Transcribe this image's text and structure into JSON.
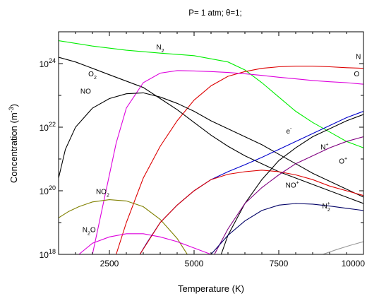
{
  "chart_data": {
    "type": "line",
    "title": "P= 1 atm; θ=1;",
    "xlabel": "Temperature (K)",
    "ylabel": "Concentration (m^-3)",
    "xlim": [
      1000,
      10000
    ],
    "ylim_log10": [
      18,
      25
    ],
    "y_scale": "log",
    "x_ticks": [
      2500,
      5000,
      7500,
      10000
    ],
    "y_ticks": [
      {
        "base": "10",
        "exp": "18"
      },
      {
        "base": "10",
        "exp": "20"
      },
      {
        "base": "10",
        "exp": "22"
      },
      {
        "base": "10",
        "exp": "24"
      }
    ],
    "grid": false,
    "series": [
      {
        "name": "N2",
        "label_main": "N",
        "label_sub": "2",
        "label_sup": "",
        "color": "#00ee00",
        "label_at": [
          4000,
          24.45
        ],
        "points": [
          [
            1000,
            24.72
          ],
          [
            2000,
            24.55
          ],
          [
            3000,
            24.42
          ],
          [
            4000,
            24.33
          ],
          [
            5000,
            24.25
          ],
          [
            6000,
            24.05
          ],
          [
            6500,
            23.8
          ],
          [
            7000,
            23.4
          ],
          [
            7500,
            22.95
          ],
          [
            8000,
            22.5
          ],
          [
            8500,
            22.15
          ],
          [
            9000,
            21.85
          ],
          [
            9500,
            21.55
          ],
          [
            10000,
            21.35
          ]
        ]
      },
      {
        "name": "O2",
        "label_main": "O",
        "label_sub": "2",
        "label_sup": "",
        "color": "#000000",
        "label_at": [
          2000,
          23.6
        ],
        "points": [
          [
            1000,
            24.2
          ],
          [
            1500,
            24.05
          ],
          [
            2000,
            23.85
          ],
          [
            2500,
            23.65
          ],
          [
            3000,
            23.45
          ],
          [
            3500,
            23.25
          ],
          [
            4000,
            22.9
          ],
          [
            4500,
            22.55
          ],
          [
            5000,
            22.15
          ],
          [
            5500,
            21.75
          ],
          [
            6000,
            21.4
          ],
          [
            6500,
            21.1
          ],
          [
            7000,
            20.85
          ],
          [
            7500,
            20.6
          ],
          [
            8000,
            20.4
          ],
          [
            8500,
            20.2
          ],
          [
            9000,
            20.0
          ],
          [
            9500,
            19.8
          ],
          [
            10000,
            19.6
          ]
        ]
      },
      {
        "name": "N",
        "label_main": "N",
        "label_sub": "",
        "label_sup": "",
        "color": "#dd0000",
        "label_at": [
          9850,
          24.15
        ],
        "points": [
          [
            2700,
            18.0
          ],
          [
            3000,
            19.0
          ],
          [
            3500,
            20.4
          ],
          [
            4000,
            21.4
          ],
          [
            4500,
            22.2
          ],
          [
            5000,
            22.85
          ],
          [
            5500,
            23.3
          ],
          [
            6000,
            23.6
          ],
          [
            6500,
            23.75
          ],
          [
            7000,
            23.85
          ],
          [
            7500,
            23.9
          ],
          [
            8000,
            23.92
          ],
          [
            8500,
            23.92
          ],
          [
            9000,
            23.9
          ],
          [
            9500,
            23.87
          ],
          [
            10000,
            23.85
          ]
        ]
      },
      {
        "name": "O",
        "label_main": "O",
        "label_sub": "",
        "label_sup": "",
        "color": "#dd00dd",
        "label_at": [
          9800,
          23.6
        ],
        "points": [
          [
            2000,
            18.0
          ],
          [
            2300,
            19.5
          ],
          [
            2700,
            21.5
          ],
          [
            3000,
            22.6
          ],
          [
            3500,
            23.4
          ],
          [
            4000,
            23.7
          ],
          [
            4500,
            23.78
          ],
          [
            5000,
            23.77
          ],
          [
            5500,
            23.75
          ],
          [
            6000,
            23.72
          ],
          [
            6500,
            23.68
          ],
          [
            7000,
            23.63
          ],
          [
            7500,
            23.57
          ],
          [
            8000,
            23.52
          ],
          [
            8500,
            23.47
          ],
          [
            9000,
            23.43
          ],
          [
            9500,
            23.4
          ],
          [
            10000,
            23.35
          ]
        ]
      },
      {
        "name": "NO",
        "label_main": "NO",
        "label_sub": "",
        "label_sup": "",
        "color": "#000000",
        "label_at": [
          1800,
          23.05
        ],
        "points": [
          [
            1000,
            20.4
          ],
          [
            1200,
            21.3
          ],
          [
            1500,
            22.0
          ],
          [
            2000,
            22.6
          ],
          [
            2500,
            22.9
          ],
          [
            3000,
            23.05
          ],
          [
            3500,
            23.08
          ],
          [
            4000,
            22.95
          ],
          [
            4500,
            22.75
          ],
          [
            5000,
            22.5
          ],
          [
            5500,
            22.2
          ],
          [
            6000,
            21.95
          ],
          [
            6500,
            21.7
          ],
          [
            7000,
            21.45
          ],
          [
            7500,
            21.15
          ],
          [
            8000,
            20.85
          ],
          [
            8500,
            20.55
          ],
          [
            9000,
            20.3
          ],
          [
            9500,
            20.05
          ],
          [
            10000,
            19.8
          ]
        ]
      },
      {
        "name": "NO2",
        "label_main": "NO",
        "label_sub": "2",
        "label_sup": "",
        "color": "#808000",
        "label_at": [
          2300,
          19.9
        ],
        "points": [
          [
            1000,
            19.15
          ],
          [
            1300,
            19.35
          ],
          [
            1600,
            19.5
          ],
          [
            2000,
            19.65
          ],
          [
            2500,
            19.72
          ],
          [
            3000,
            19.68
          ],
          [
            3500,
            19.5
          ],
          [
            4000,
            19.1
          ],
          [
            4500,
            18.5
          ],
          [
            4800,
            18.0
          ]
        ]
      },
      {
        "name": "N2O",
        "label_main": "N",
        "label_sub": "2",
        "label_sup": "",
        "label_tail": "O",
        "color": "#dd00dd",
        "label_at": [
          1900,
          18.7
        ],
        "points": [
          [
            1600,
            18.0
          ],
          [
            2000,
            18.35
          ],
          [
            2500,
            18.55
          ],
          [
            3000,
            18.65
          ],
          [
            3500,
            18.65
          ],
          [
            4000,
            18.55
          ],
          [
            4500,
            18.4
          ],
          [
            5000,
            18.2
          ],
          [
            5500,
            18.0
          ]
        ]
      },
      {
        "name": "e-",
        "label_main": "e",
        "label_sub": "",
        "label_sup": "-",
        "color": "#0000cc",
        "label_at": [
          7800,
          21.8
        ],
        "points": [
          [
            3400,
            18.0
          ],
          [
            3600,
            18.35
          ],
          [
            4000,
            19.0
          ],
          [
            4500,
            19.55
          ],
          [
            5000,
            20.0
          ],
          [
            5500,
            20.35
          ],
          [
            6000,
            20.6
          ],
          [
            6500,
            20.82
          ],
          [
            7000,
            21.05
          ],
          [
            7500,
            21.3
          ],
          [
            8000,
            21.55
          ],
          [
            8500,
            21.8
          ],
          [
            9000,
            22.05
          ],
          [
            9500,
            22.3
          ],
          [
            10000,
            22.5
          ]
        ]
      },
      {
        "name": "NO+",
        "label_main": "NO",
        "label_sub": "",
        "label_sup": "+",
        "color": "#dd0000",
        "label_at": [
          7900,
          20.1
        ],
        "points": [
          [
            3400,
            18.0
          ],
          [
            3700,
            18.5
          ],
          [
            4000,
            19.0
          ],
          [
            4500,
            19.55
          ],
          [
            5000,
            20.0
          ],
          [
            5500,
            20.35
          ],
          [
            6000,
            20.52
          ],
          [
            6500,
            20.6
          ],
          [
            7000,
            20.65
          ],
          [
            7500,
            20.6
          ],
          [
            8000,
            20.5
          ],
          [
            8500,
            20.35
          ],
          [
            9000,
            20.15
          ],
          [
            9500,
            20.0
          ],
          [
            10000,
            19.85
          ]
        ]
      },
      {
        "name": "N+",
        "label_main": "N",
        "label_sub": "",
        "label_sup": "+",
        "color": "#000000",
        "label_at": [
          8850,
          21.3
        ],
        "points": [
          [
            5800,
            18.0
          ],
          [
            6000,
            18.6
          ],
          [
            6500,
            19.6
          ],
          [
            7000,
            20.35
          ],
          [
            7500,
            20.95
          ],
          [
            8000,
            21.35
          ],
          [
            8500,
            21.7
          ],
          [
            9000,
            21.95
          ],
          [
            9500,
            22.2
          ],
          [
            10000,
            22.4
          ]
        ]
      },
      {
        "name": "O+",
        "label_main": "O",
        "label_sub": "",
        "label_sup": "+",
        "color": "#800080",
        "label_at": [
          9400,
          20.85
        ],
        "points": [
          [
            5600,
            18.0
          ],
          [
            6000,
            18.8
          ],
          [
            6500,
            19.6
          ],
          [
            7000,
            20.1
          ],
          [
            7500,
            20.5
          ],
          [
            8000,
            20.85
          ],
          [
            8500,
            21.1
          ],
          [
            9000,
            21.35
          ],
          [
            9500,
            21.55
          ],
          [
            10000,
            21.7
          ]
        ]
      },
      {
        "name": "N2+",
        "label_main": "N",
        "label_sub": "2",
        "label_sup": "+",
        "color": "#000066",
        "label_at": [
          8900,
          19.45
        ],
        "points": [
          [
            5500,
            18.0
          ],
          [
            6000,
            18.6
          ],
          [
            6500,
            19.05
          ],
          [
            7000,
            19.38
          ],
          [
            7500,
            19.55
          ],
          [
            8000,
            19.6
          ],
          [
            8500,
            19.58
          ],
          [
            9000,
            19.52
          ],
          [
            9500,
            19.45
          ],
          [
            10000,
            19.38
          ]
        ]
      },
      {
        "name": "grey",
        "label_main": "",
        "label_sub": "",
        "label_sup": "",
        "color": "#999999",
        "label_at": null,
        "points": [
          [
            8800,
            18.0
          ],
          [
            9200,
            18.15
          ],
          [
            9600,
            18.28
          ],
          [
            10000,
            18.4
          ]
        ]
      }
    ]
  }
}
